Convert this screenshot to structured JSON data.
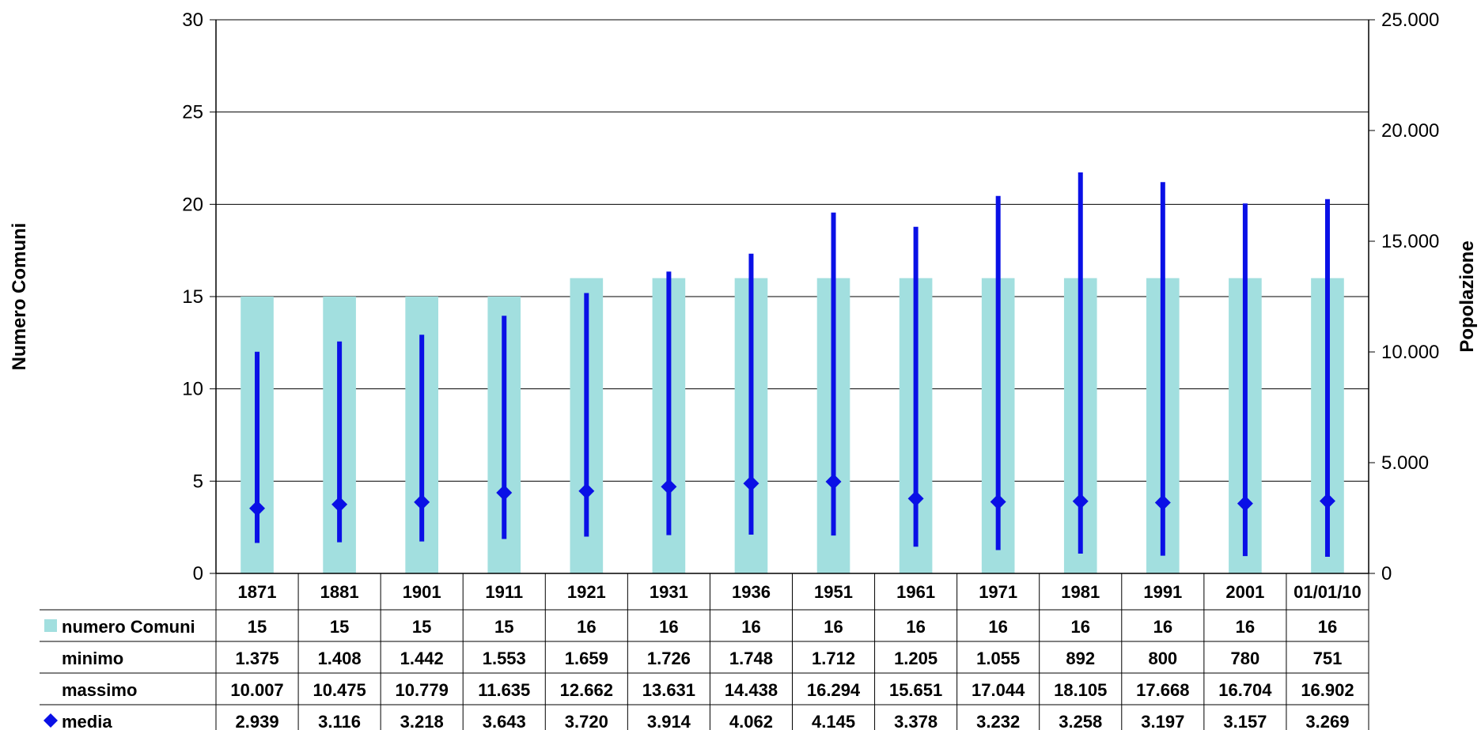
{
  "chart_data": {
    "type": "bar",
    "categories": [
      "1871",
      "1881",
      "1901",
      "1911",
      "1921",
      "1931",
      "1936",
      "1951",
      "1961",
      "1971",
      "1981",
      "1991",
      "2001",
      "01/01/10"
    ],
    "ylabel_left": "Numero Comuni",
    "ylabel_right": "Popolazione",
    "ylim_left": [
      0,
      30
    ],
    "ylim_right": [
      0,
      25000
    ],
    "yticks_left": [
      "0",
      "5",
      "10",
      "15",
      "20",
      "25",
      "30"
    ],
    "yticks_right": [
      "0",
      "5.000",
      "10.000",
      "15.000",
      "20.000",
      "25.000"
    ],
    "grid": true,
    "legend_placement": "data table below chart",
    "colors": {
      "bar": "#a2dfdf",
      "range": "#0a10e6",
      "marker": "#0a10e6",
      "grid": "#000000"
    },
    "series": [
      {
        "name": "numero Comuni",
        "type": "bar",
        "axis": "left",
        "values": [
          15,
          15,
          15,
          15,
          16,
          16,
          16,
          16,
          16,
          16,
          16,
          16,
          16,
          16
        ],
        "labels": [
          "15",
          "15",
          "15",
          "15",
          "16",
          "16",
          "16",
          "16",
          "16",
          "16",
          "16",
          "16",
          "16",
          "16"
        ]
      },
      {
        "name": "minimo",
        "type": "range-low",
        "axis": "right",
        "values": [
          1375,
          1408,
          1442,
          1553,
          1659,
          1726,
          1748,
          1712,
          1205,
          1055,
          892,
          800,
          780,
          751
        ],
        "labels": [
          "1.375",
          "1.408",
          "1.442",
          "1.553",
          "1.659",
          "1.726",
          "1.748",
          "1.712",
          "1.205",
          "1.055",
          "892",
          "800",
          "780",
          "751"
        ]
      },
      {
        "name": "massimo",
        "type": "range-high",
        "axis": "right",
        "values": [
          10007,
          10475,
          10779,
          11635,
          12662,
          13631,
          14438,
          16294,
          15651,
          17044,
          18105,
          17668,
          16704,
          16902
        ],
        "labels": [
          "10.007",
          "10.475",
          "10.779",
          "11.635",
          "12.662",
          "13.631",
          "14.438",
          "16.294",
          "15.651",
          "17.044",
          "18.105",
          "17.668",
          "16.704",
          "16.902"
        ]
      },
      {
        "name": "media",
        "type": "marker",
        "axis": "right",
        "values": [
          2939,
          3116,
          3218,
          3643,
          3720,
          3914,
          4062,
          4145,
          3378,
          3232,
          3258,
          3197,
          3157,
          3269
        ],
        "labels": [
          "2.939",
          "3.116",
          "3.218",
          "3.643",
          "3.720",
          "3.914",
          "4.062",
          "4.145",
          "3.378",
          "3.232",
          "3.258",
          "3.197",
          "3.157",
          "3.269"
        ]
      }
    ]
  }
}
